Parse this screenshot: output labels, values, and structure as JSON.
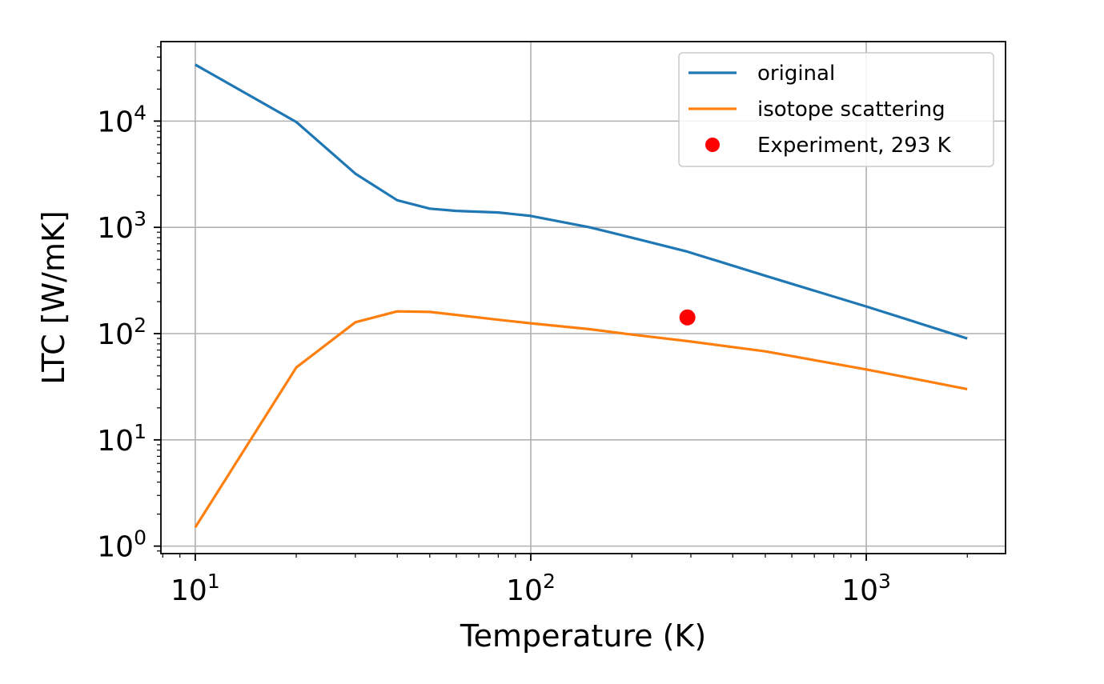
{
  "chart_data": {
    "type": "line",
    "xlabel": "Temperature (K)",
    "ylabel": "LTC [W/mK]",
    "xscale": "log",
    "yscale": "log",
    "xlim": [
      7.9,
      2600
    ],
    "ylim": [
      0.85,
      56000
    ],
    "grid": true,
    "legend_position": "top-right",
    "x_ticks": [
      {
        "value": 10,
        "base": "10",
        "exp": "1"
      },
      {
        "value": 100,
        "base": "10",
        "exp": "2"
      },
      {
        "value": 1000,
        "base": "10",
        "exp": "3"
      }
    ],
    "y_ticks": [
      {
        "value": 1,
        "base": "10",
        "exp": "0"
      },
      {
        "value": 10,
        "base": "10",
        "exp": "1"
      },
      {
        "value": 100,
        "base": "10",
        "exp": "2"
      },
      {
        "value": 1000,
        "base": "10",
        "exp": "3"
      },
      {
        "value": 10000,
        "base": "10",
        "exp": "4"
      }
    ],
    "series": [
      {
        "name": "original",
        "color": "#1f77b4",
        "style": "line",
        "x": [
          10,
          20,
          30,
          40,
          50,
          60,
          80,
          100,
          150,
          200,
          293,
          500,
          1000,
          2000
        ],
        "y": [
          34000,
          9800,
          3200,
          1800,
          1500,
          1430,
          1380,
          1280,
          1000,
          800,
          590,
          350,
          180,
          90
        ]
      },
      {
        "name": "isotope scattering",
        "color": "#ff7f0e",
        "style": "line",
        "x": [
          10,
          20,
          30,
          40,
          50,
          60,
          80,
          100,
          150,
          200,
          293,
          500,
          1000,
          2000
        ],
        "y": [
          1.5,
          48,
          128,
          162,
          160,
          150,
          135,
          125,
          110,
          98,
          85,
          68,
          46,
          30
        ]
      },
      {
        "name": "Experiment, 293 K",
        "color": "#ff0000",
        "style": "point",
        "x": [
          293
        ],
        "y": [
          142
        ]
      }
    ]
  }
}
